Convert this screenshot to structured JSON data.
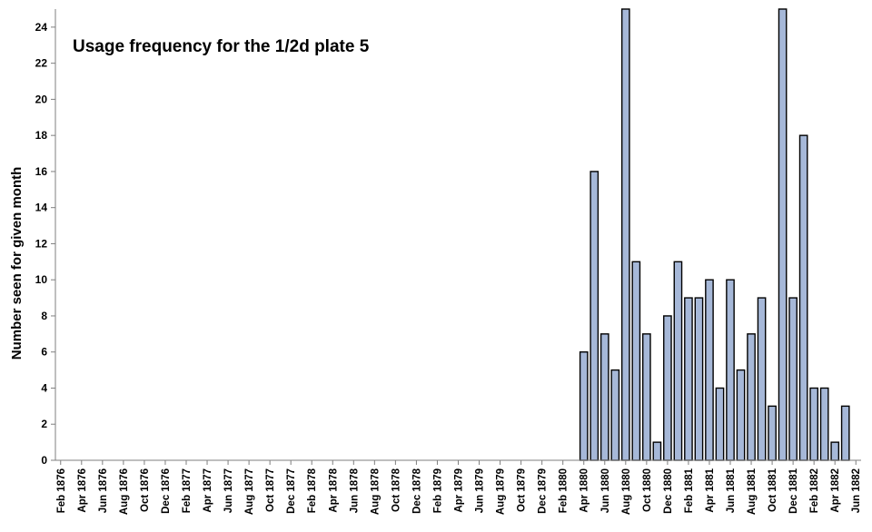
{
  "chart_data": {
    "type": "bar",
    "title": "Usage frequency for the 1/2d plate 5",
    "xlabel": "",
    "ylabel": "Number seen for given month",
    "ylim": [
      0,
      25
    ],
    "yticks": [
      0,
      2,
      4,
      6,
      8,
      10,
      12,
      14,
      16,
      18,
      20,
      22,
      24
    ],
    "grid": false,
    "legend": "none",
    "bar_color": "#a6b8d8",
    "edge_color": "#000000",
    "categories": [
      "Feb 1876",
      "Mar 1876",
      "Apr 1876",
      "May 1876",
      "Jun 1876",
      "Jul 1876",
      "Aug 1876",
      "Sep 1876",
      "Oct 1876",
      "Nov 1876",
      "Dec 1876",
      "Jan 1877",
      "Feb 1877",
      "Mar 1877",
      "Apr 1877",
      "May 1877",
      "Jun 1877",
      "Jul 1877",
      "Aug 1877",
      "Sep 1877",
      "Oct 1877",
      "Nov 1877",
      "Dec 1877",
      "Jan 1878",
      "Feb 1878",
      "Mar 1878",
      "Apr 1878",
      "May 1878",
      "Jun 1878",
      "Jul 1878",
      "Aug 1878",
      "Sep 1878",
      "Oct 1878",
      "Nov 1878",
      "Dec 1878",
      "Jan 1879",
      "Feb 1879",
      "Mar 1879",
      "Apr 1879",
      "May 1879",
      "Jun 1879",
      "Jul 1879",
      "Aug 1879",
      "Sep 1879",
      "Oct 1879",
      "Nov 1879",
      "Dec 1879",
      "Jan 1880",
      "Feb 1880",
      "Mar 1880",
      "Apr 1880",
      "May 1880",
      "Jun 1880",
      "Jul 1880",
      "Aug 1880",
      "Sep 1880",
      "Oct 1880",
      "Nov 1880",
      "Dec 1880",
      "Jan 1881",
      "Feb 1881",
      "Mar 1881",
      "Apr 1881",
      "May 1881",
      "Jun 1881",
      "Jul 1881",
      "Aug 1881",
      "Sep 1881",
      "Oct 1881",
      "Nov 1881",
      "Dec 1881",
      "Jan 1882",
      "Feb 1882",
      "Mar 1882",
      "Apr 1882",
      "May 1882",
      "Jun 1882"
    ],
    "tick_labels": [
      "Feb 1876",
      "Apr 1876",
      "Jun 1876",
      "Aug 1876",
      "Oct 1876",
      "Dec 1876",
      "Feb 1877",
      "Apr 1877",
      "Jun 1877",
      "Aug 1877",
      "Oct 1877",
      "Dec 1877",
      "Feb 1878",
      "Apr 1878",
      "Jun 1878",
      "Aug 1878",
      "Oct 1878",
      "Dec 1878",
      "Feb 1879",
      "Apr 1879",
      "Jun 1879",
      "Aug 1879",
      "Oct 1879",
      "Dec 1879",
      "Feb 1880",
      "Apr 1880",
      "Jun 1880",
      "Aug 1880",
      "Oct 1880",
      "Dec 1880",
      "Feb 1881",
      "Apr 1881",
      "Jun 1881",
      "Aug 1881",
      "Oct 1881",
      "Dec 1881",
      "Feb 1882",
      "Apr 1882",
      "Jun 1882"
    ],
    "values": [
      0,
      0,
      0,
      0,
      0,
      0,
      0,
      0,
      0,
      0,
      0,
      0,
      0,
      0,
      0,
      0,
      0,
      0,
      0,
      0,
      0,
      0,
      0,
      0,
      0,
      0,
      0,
      0,
      0,
      0,
      0,
      0,
      0,
      0,
      0,
      0,
      0,
      0,
      0,
      0,
      0,
      0,
      0,
      0,
      0,
      0,
      0,
      0,
      0,
      0,
      6,
      16,
      7,
      5,
      25,
      11,
      7,
      1,
      8,
      11,
      9,
      9,
      10,
      4,
      10,
      5,
      7,
      9,
      3,
      25,
      9,
      18,
      4,
      4,
      1,
      3,
      0
    ]
  }
}
